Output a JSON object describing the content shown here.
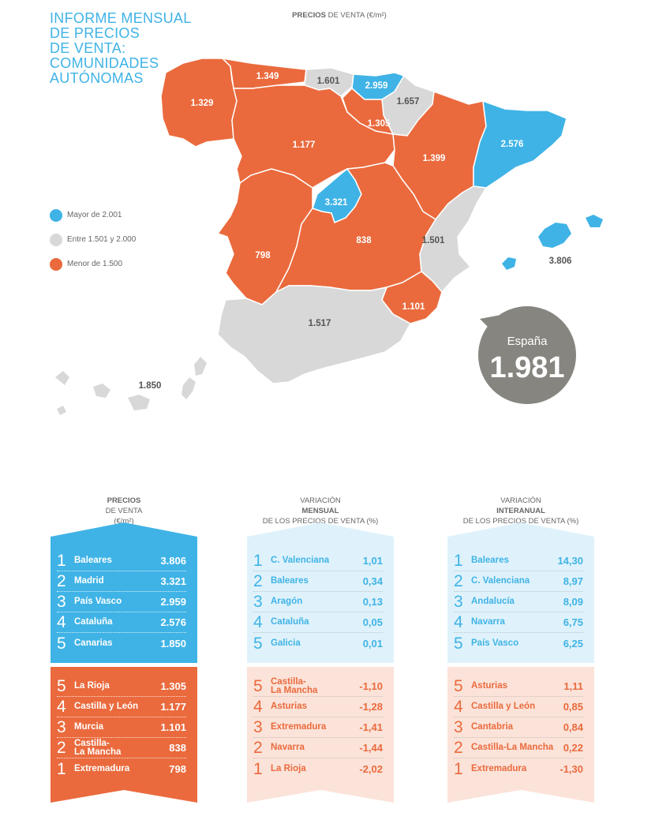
{
  "title_lines": [
    "INFORME MENSUAL",
    "DE PRECIOS",
    "DE VENTA:",
    "COMUNIDADES",
    "AUTÓNOMAS"
  ],
  "map_heading": {
    "bold": "PRECIOS",
    "rest": " DE VENTA (€/m²)"
  },
  "colors": {
    "blue": "#3fb3e6",
    "gray": "#d8d8d8",
    "orange": "#ea6a3d",
    "dark": "#878580"
  },
  "legend": [
    {
      "label": "Mayor de 2.001",
      "color": "#3fb3e6"
    },
    {
      "label": "Entre 1.501 y 2.000",
      "color": "#d8d8d8"
    },
    {
      "label": "Menor de 1.500",
      "color": "#ea6a3d"
    }
  ],
  "map_values": {
    "asturias": "1.349",
    "cantabria": "1.601",
    "pais_vasco": "2.959",
    "galicia": "1.329",
    "navarra": "1.657",
    "la_rioja": "1.305",
    "castilla_leon": "1.177",
    "cataluna": "2.576",
    "aragon": "1.399",
    "madrid": "3.321",
    "baleares": "3.806",
    "extremadura": "798",
    "castilla_la_mancha": "838",
    "c_valenciana": "1.501",
    "murcia": "1.101",
    "andalucia": "1.517",
    "canarias": "1.850"
  },
  "spain": {
    "label": "España",
    "value": "1.981"
  },
  "columns": [
    {
      "heading": {
        "line1_bold": "PRECIOS",
        "line1_rest": " DE VENTA",
        "line2": "(€/m²)"
      },
      "top": [
        {
          "rank": "1",
          "name": "Baleares",
          "value": "3.806"
        },
        {
          "rank": "2",
          "name": "Madrid",
          "value": "3.321"
        },
        {
          "rank": "3",
          "name": "País Vasco",
          "value": "2.959"
        },
        {
          "rank": "4",
          "name": "Cataluña",
          "value": "2.576"
        },
        {
          "rank": "5",
          "name": "Canarias",
          "value": "1.850"
        }
      ],
      "bottom": [
        {
          "rank": "5",
          "name": "La Rioja",
          "value": "1.305"
        },
        {
          "rank": "4",
          "name": "Castilla y León",
          "value": "1.177"
        },
        {
          "rank": "3",
          "name": "Murcia",
          "value": "1.101"
        },
        {
          "rank": "2",
          "name": "Castilla-\nLa Mancha",
          "value": "838"
        },
        {
          "rank": "1",
          "name": "Extremadura",
          "value": "798"
        }
      ]
    },
    {
      "heading": {
        "line1_pre": "VARIACIÓN ",
        "line1_bold": "MENSUAL",
        "line2": "DE LOS PRECIOS DE VENTA (%)"
      },
      "top": [
        {
          "rank": "1",
          "name": "C. Valenciana",
          "value": "1,01"
        },
        {
          "rank": "2",
          "name": "Baleares",
          "value": "0,34"
        },
        {
          "rank": "3",
          "name": "Aragón",
          "value": "0,13"
        },
        {
          "rank": "4",
          "name": "Cataluña",
          "value": "0,05"
        },
        {
          "rank": "5",
          "name": "Galicia",
          "value": "0,01"
        }
      ],
      "bottom": [
        {
          "rank": "5",
          "name": "Castilla-\nLa Mancha",
          "value": "-1,10"
        },
        {
          "rank": "4",
          "name": "Asturias",
          "value": "-1,28"
        },
        {
          "rank": "3",
          "name": "Extremadura",
          "value": "-1,41"
        },
        {
          "rank": "2",
          "name": "Navarra",
          "value": "-1,44"
        },
        {
          "rank": "1",
          "name": "La Rioja",
          "value": "-2,02"
        }
      ]
    },
    {
      "heading": {
        "line1_pre": "VARIACIÓN ",
        "line1_bold": "INTERANUAL",
        "line2": "DE LOS PRECIOS DE VENTA (%)"
      },
      "top": [
        {
          "rank": "1",
          "name": "Baleares",
          "value": "14,30"
        },
        {
          "rank": "2",
          "name": "C. Valenciana",
          "value": "8,97"
        },
        {
          "rank": "3",
          "name": "Andalucía",
          "value": "8,09"
        },
        {
          "rank": "4",
          "name": "Navarra",
          "value": "6,75"
        },
        {
          "rank": "5",
          "name": "País Vasco",
          "value": "6,25"
        }
      ],
      "bottom": [
        {
          "rank": "5",
          "name": "Asturias",
          "value": "1,11"
        },
        {
          "rank": "4",
          "name": "Castilla y León",
          "value": "0,85"
        },
        {
          "rank": "3",
          "name": "Cantabria",
          "value": "0,84"
        },
        {
          "rank": "2",
          "name": "Castilla-La Mancha",
          "value": "0,22"
        },
        {
          "rank": "1",
          "name": "Extremadura",
          "value": "-1,30"
        }
      ]
    }
  ]
}
